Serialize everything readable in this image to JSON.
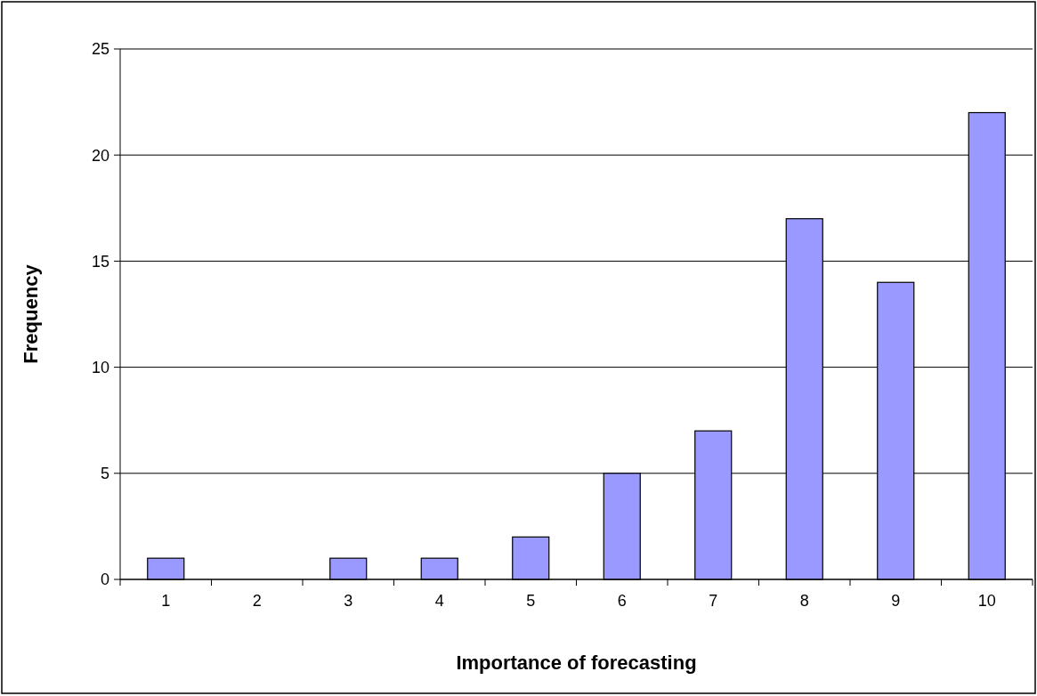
{
  "chart_data": {
    "type": "bar",
    "xlabel": "Importance of forecasting",
    "ylabel": "Frequency",
    "categories": [
      "1",
      "2",
      "3",
      "4",
      "5",
      "6",
      "7",
      "8",
      "9",
      "10"
    ],
    "values": [
      1,
      0,
      1,
      1,
      2,
      5,
      7,
      17,
      14,
      22
    ],
    "color": "#9999ff",
    "ylim": [
      0,
      25
    ],
    "yticks": [
      0,
      5,
      10,
      15,
      20,
      25
    ],
    "grid": "y"
  }
}
